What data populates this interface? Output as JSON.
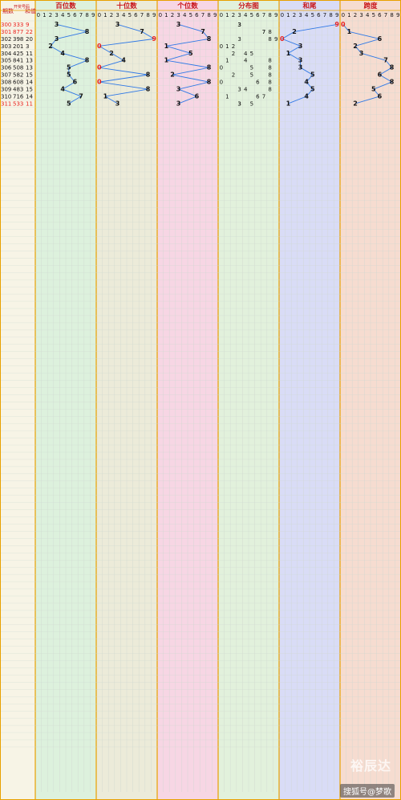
{
  "header": {
    "col_issue": "期数",
    "col_number": "开奖号码",
    "col_sum": "和值",
    "digit_labels": [
      "0",
      "1",
      "2",
      "3",
      "4",
      "5",
      "6",
      "7",
      "8",
      "9"
    ]
  },
  "panels": [
    {
      "title": "百位数",
      "bg": "#ddf1dd"
    },
    {
      "title": "十位数",
      "bg": "#ecebd9"
    },
    {
      "title": "个位数",
      "bg": "#f7d6e4"
    },
    {
      "title": "分布图",
      "bg": "#e2f1dc"
    },
    {
      "title": "和尾",
      "bg": "#d9dcf6"
    },
    {
      "title": "跨度",
      "bg": "#f6dcd0"
    }
  ],
  "colors": {
    "line": "#2f78e6",
    "red": "#e8211d",
    "black": "#111111",
    "header_text": "#c8141a",
    "gold_border": "#e8a000",
    "grid": "#cfd8d0"
  },
  "chart_data": {
    "type": "table",
    "note_rows_visible": 100,
    "rows": [
      {
        "issue": "300",
        "number": "333",
        "sum": "9",
        "b": 3,
        "s": 3,
        "g": 3,
        "hw": 9,
        "kd": 0,
        "hl": true
      },
      {
        "issue": "301",
        "number": "877",
        "sum": "22",
        "b": 8,
        "s": 7,
        "g": 7,
        "hw": 2,
        "kd": 1,
        "hl": true
      },
      {
        "issue": "302",
        "number": "398",
        "sum": "20",
        "b": 3,
        "s": 9,
        "g": 8,
        "hw": 0,
        "kd": 6,
        "hl": false
      },
      {
        "issue": "303",
        "number": "201",
        "sum": "3",
        "b": 2,
        "s": 0,
        "g": 1,
        "hw": 3,
        "kd": 2,
        "hl": false
      },
      {
        "issue": "304",
        "number": "425",
        "sum": "11",
        "b": 4,
        "s": 2,
        "g": 5,
        "hw": 1,
        "kd": 3,
        "hl": false
      },
      {
        "issue": "305",
        "number": "841",
        "sum": "13",
        "b": 8,
        "s": 4,
        "g": 1,
        "hw": 3,
        "kd": 7,
        "hl": false
      },
      {
        "issue": "306",
        "number": "508",
        "sum": "13",
        "b": 5,
        "s": 0,
        "g": 8,
        "hw": 3,
        "kd": 8,
        "hl": false
      },
      {
        "issue": "307",
        "number": "582",
        "sum": "15",
        "b": 5,
        "s": 8,
        "g": 2,
        "hw": 5,
        "kd": 6,
        "hl": false
      },
      {
        "issue": "308",
        "number": "608",
        "sum": "14",
        "b": 6,
        "s": 0,
        "g": 8,
        "hw": 4,
        "kd": 8,
        "hl": false
      },
      {
        "issue": "309",
        "number": "483",
        "sum": "15",
        "b": 4,
        "s": 8,
        "g": 3,
        "hw": 5,
        "kd": 5,
        "hl": false
      },
      {
        "issue": "310",
        "number": "716",
        "sum": "14",
        "b": 7,
        "s": 1,
        "g": 6,
        "hw": 4,
        "kd": 6,
        "hl": false
      },
      {
        "issue": "311",
        "number": "533",
        "sum": "11",
        "b": 5,
        "s": 3,
        "g": 3,
        "hw": 1,
        "kd": 2,
        "hl": true
      }
    ]
  },
  "watermark": {
    "brand": "裕辰达",
    "source": "搜狐号@梦歌"
  }
}
